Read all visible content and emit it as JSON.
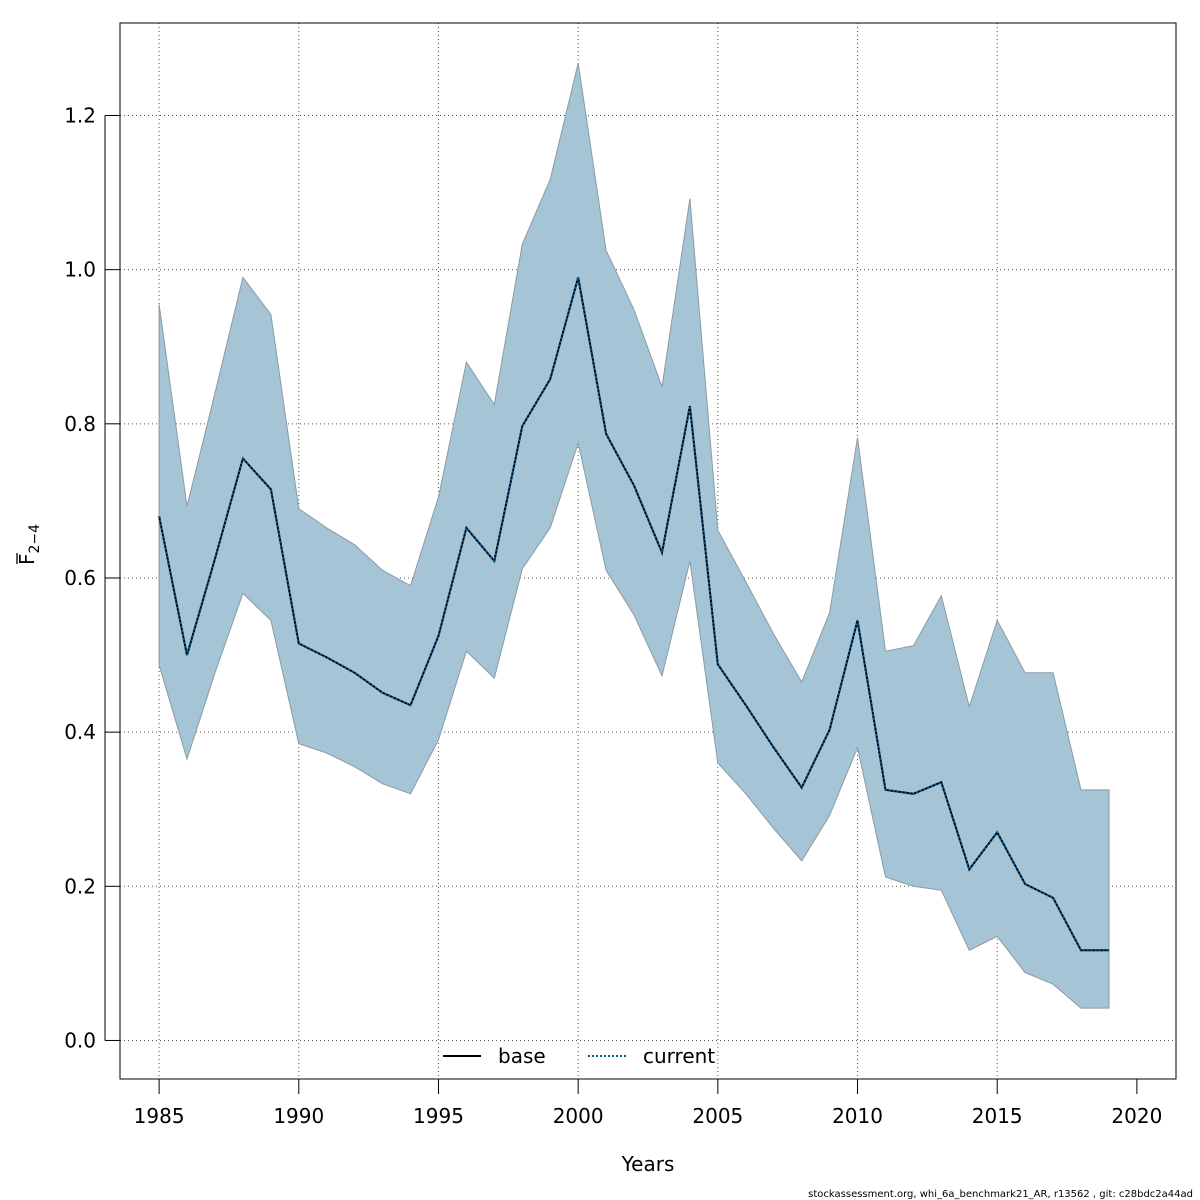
{
  "chart_data": {
    "type": "area",
    "xlabel": "Years",
    "ylabel": {
      "base": "F",
      "sub": "2−4"
    },
    "xlim": [
      1983.6,
      2021.4
    ],
    "ylim": [
      -0.05,
      1.32
    ],
    "xticks": [
      1985,
      1990,
      1995,
      2000,
      2005,
      2010,
      2015,
      2020
    ],
    "yticks": [
      0.0,
      0.2,
      0.4,
      0.6,
      0.8,
      1.0,
      1.2
    ],
    "ytick_labels": [
      "0.0",
      "0.2",
      "0.4",
      "0.6",
      "0.8",
      "1.0",
      "1.2"
    ],
    "grid": true,
    "legend_position": "bottom-center",
    "x": [
      1985,
      1986,
      1987,
      1988,
      1989,
      1990,
      1991,
      1992,
      1993,
      1994,
      1995,
      1996,
      1997,
      1998,
      1999,
      2000,
      2001,
      2002,
      2003,
      2004,
      2005,
      2006,
      2007,
      2008,
      2009,
      2010,
      2011,
      2012,
      2013,
      2014,
      2015,
      2016,
      2017,
      2018,
      2019
    ],
    "series": [
      {
        "name": "base",
        "style": "solid",
        "color": "#000000",
        "values": [
          0.68,
          0.5,
          0.625,
          0.755,
          0.715,
          0.515,
          0.497,
          0.477,
          0.451,
          0.435,
          0.525,
          0.665,
          0.622,
          0.797,
          0.858,
          0.99,
          0.787,
          0.72,
          0.633,
          0.823,
          0.488,
          0.435,
          0.38,
          0.328,
          0.403,
          0.545,
          0.325,
          0.32,
          0.335,
          0.222,
          0.27,
          0.203,
          0.185,
          0.117,
          0.117
        ]
      },
      {
        "name": "current",
        "style": "dotted",
        "color": "#005b96",
        "values": [
          0.68,
          0.5,
          0.625,
          0.755,
          0.715,
          0.515,
          0.497,
          0.477,
          0.451,
          0.435,
          0.525,
          0.665,
          0.622,
          0.797,
          0.858,
          0.99,
          0.787,
          0.72,
          0.633,
          0.823,
          0.488,
          0.435,
          0.38,
          0.328,
          0.403,
          0.545,
          0.325,
          0.32,
          0.335,
          0.222,
          0.27,
          0.203,
          0.185,
          0.117,
          0.117
        ]
      }
    ],
    "band": {
      "color": "#a5c4d5",
      "upper": [
        0.955,
        0.693,
        0.84,
        0.99,
        0.942,
        0.69,
        0.665,
        0.643,
        0.61,
        0.59,
        0.705,
        0.88,
        0.825,
        1.033,
        1.117,
        1.268,
        1.025,
        0.948,
        0.848,
        1.092,
        0.662,
        0.595,
        0.527,
        0.465,
        0.555,
        0.782,
        0.505,
        0.512,
        0.577,
        0.433,
        0.545,
        0.477,
        0.477,
        0.325,
        0.325
      ],
      "lower": [
        0.487,
        0.365,
        0.477,
        0.58,
        0.545,
        0.385,
        0.373,
        0.355,
        0.333,
        0.32,
        0.39,
        0.505,
        0.47,
        0.612,
        0.665,
        0.775,
        0.61,
        0.552,
        0.473,
        0.622,
        0.36,
        0.32,
        0.275,
        0.233,
        0.292,
        0.38,
        0.212,
        0.2,
        0.195,
        0.117,
        0.135,
        0.088,
        0.073,
        0.042,
        0.042
      ]
    }
  },
  "footer": "stockassessment.org, whi_6a_benchmark21_AR, r13562 , git: c28bdc2a44ad"
}
